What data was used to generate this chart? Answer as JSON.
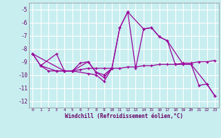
{
  "xlabel": "Windchill (Refroidissement éolien,°C)",
  "background_color": "#c8eef0",
  "grid_color": "#ffffff",
  "line_color": "#990099",
  "xlim": [
    -0.5,
    23.5
  ],
  "ylim": [
    -12.5,
    -4.5
  ],
  "yticks": [
    -12,
    -11,
    -10,
    -9,
    -8,
    -7,
    -6,
    -5
  ],
  "xticks": [
    0,
    1,
    2,
    3,
    4,
    5,
    6,
    7,
    8,
    9,
    10,
    11,
    12,
    13,
    14,
    15,
    16,
    17,
    18,
    19,
    20,
    21,
    22,
    23
  ],
  "series": [
    [
      null,
      -9.3,
      null,
      -8.4,
      -9.7,
      -9.7,
      null,
      -9.0,
      -9.8,
      -10.2,
      -9.5,
      -6.4,
      -5.2,
      null,
      -6.5,
      -6.4,
      -7.1,
      -7.4,
      null,
      -9.2,
      -9.2,
      null,
      -10.7,
      -11.6
    ],
    [
      -8.4,
      null,
      null,
      null,
      -9.7,
      -9.7,
      null,
      -9.9,
      -10.0,
      -10.5,
      -9.5,
      null,
      null,
      null,
      null,
      null,
      null,
      null,
      null,
      null,
      null,
      null,
      null,
      null
    ],
    [
      -8.4,
      -9.3,
      null,
      -9.7,
      -9.7,
      -9.7,
      -9.1,
      -9.0,
      -9.8,
      -10.0,
      -9.5,
      -6.4,
      -5.2,
      -9.5,
      -6.5,
      -6.4,
      -7.1,
      -7.4,
      -9.2,
      -9.2,
      -9.2,
      -10.8,
      -10.7,
      -11.6
    ],
    [
      -8.4,
      -9.3,
      -9.7,
      -9.7,
      -9.7,
      -9.7,
      -9.6,
      -9.5,
      -9.5,
      -9.5,
      -9.5,
      -9.5,
      -9.4,
      -9.4,
      -9.3,
      -9.3,
      -9.2,
      -9.2,
      -9.2,
      -9.1,
      -9.1,
      -9.0,
      -9.0,
      -8.9
    ]
  ]
}
